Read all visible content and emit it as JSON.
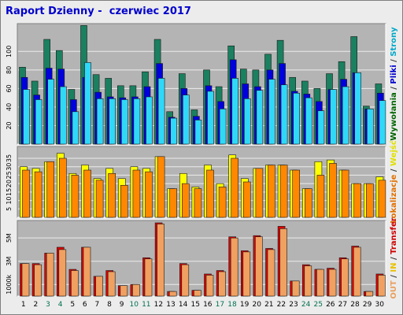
{
  "title": "Raport Dzienny -  czerwiec 2017",
  "side_labels": {
    "top": [
      {
        "text": "Wywołania",
        "color": "#006400"
      },
      {
        "text": " / ",
        "color": "#333333"
      },
      {
        "text": "Pliki",
        "color": "#0000cc"
      },
      {
        "text": " / ",
        "color": "#333333"
      },
      {
        "text": "Strony",
        "color": "#00a8c8"
      }
    ],
    "middle": [
      {
        "text": "Lokalizacje",
        "color": "#e07000"
      },
      {
        "text": " / ",
        "color": "#333333"
      },
      {
        "text": "Wejść",
        "color": "#e0e000"
      }
    ],
    "bottom": [
      {
        "text": "OUT",
        "color": "#e8a060"
      },
      {
        "text": " / ",
        "color": "#333333"
      },
      {
        "text": "IN",
        "color": "#e8c000"
      },
      {
        "text": " / ",
        "color": "#333333"
      },
      {
        "text": "Transfer",
        "color": "#cc0000"
      }
    ]
  },
  "colors": {
    "hits": "#1a8060",
    "files": "#0000dd",
    "pages": "#30d8f8",
    "visits": "#ffff00",
    "sites": "#ff8800",
    "kbytes": "#dd0000",
    "kbytes_out": "#f0a060",
    "plot_bg": "#b4b4b4",
    "grid": "#ececec",
    "day_normal": "#000000",
    "day_weekend": "#007050"
  },
  "chart_data": [
    {
      "type": "bar",
      "name_key": "hits_files_pages",
      "ylim": [
        0,
        130
      ],
      "yticks": [
        "20",
        "40",
        "60",
        "80",
        "100"
      ],
      "ytick_values": [
        20,
        40,
        60,
        80,
        100
      ],
      "series": [
        {
          "values": [
            83,
            68,
            113,
            101,
            59,
            128,
            75,
            71,
            63,
            63,
            78,
            113,
            35,
            76,
            37,
            80,
            62,
            106,
            81,
            80,
            97,
            112,
            72,
            68,
            60,
            76,
            89,
            116,
            41,
            65
          ]
        },
        {
          "values": [
            72,
            53,
            82,
            81,
            48,
            72,
            56,
            51,
            50,
            51,
            62,
            87,
            29,
            60,
            30,
            63,
            46,
            91,
            65,
            62,
            80,
            87,
            57,
            54,
            46,
            59,
            70,
            77,
            38,
            55
          ]
        },
        {
          "values": [
            59,
            48,
            70,
            62,
            35,
            88,
            49,
            49,
            48,
            49,
            51,
            71,
            28,
            53,
            26,
            57,
            38,
            71,
            49,
            58,
            70,
            64,
            55,
            50,
            36,
            59,
            62,
            77,
            38,
            47
          ]
        }
      ]
    },
    {
      "type": "bar",
      "name_key": "visits_sites",
      "ylim": [
        0,
        42
      ],
      "yticks": [
        "5",
        "10",
        "15",
        "20",
        "25",
        "30",
        "35"
      ],
      "ytick_values": [
        5,
        10,
        15,
        20,
        25,
        30,
        35
      ],
      "series": [
        {
          "values": [
            30,
            29,
            33,
            38,
            26,
            31,
            23,
            29,
            23,
            30,
            29,
            36,
            17,
            26,
            18,
            31,
            20,
            37,
            23,
            29,
            31,
            31,
            28,
            17,
            33,
            34,
            28,
            20,
            20,
            24
          ]
        },
        {
          "values": [
            28,
            27,
            33,
            35,
            25,
            28,
            22,
            26,
            19,
            28,
            27,
            36,
            17,
            20,
            17,
            28,
            18,
            35,
            21,
            29,
            31,
            31,
            28,
            17,
            25,
            32,
            28,
            20,
            20,
            22
          ]
        }
      ]
    },
    {
      "type": "bar",
      "name_key": "kbytes",
      "ylim": [
        0,
        6500
      ],
      "yticks": [
        "1000k",
        "3M",
        "5M"
      ],
      "ytick_values": [
        1000,
        3000,
        5000
      ],
      "series": [
        {
          "values": [
            2800,
            2800,
            3700,
            4200,
            2300,
            4200,
            1700,
            2200,
            900,
            1000,
            3300,
            6300,
            400,
            2800,
            500,
            1900,
            2200,
            5100,
            3900,
            5200,
            4100,
            6000,
            1300,
            2700,
            2300,
            2400,
            3300,
            4300,
            400,
            1900
          ]
        },
        {
          "values": [
            2800,
            2700,
            3700,
            4000,
            2200,
            4200,
            1700,
            2100,
            900,
            1000,
            3200,
            6200,
            400,
            2700,
            500,
            1800,
            2100,
            5000,
            3800,
            5100,
            4000,
            5800,
            1300,
            2600,
            2300,
            2300,
            3200,
            4200,
            400,
            1800
          ]
        }
      ]
    }
  ],
  "days": [
    "1",
    "2",
    "3",
    "4",
    "5",
    "6",
    "7",
    "8",
    "9",
    "10",
    "11",
    "12",
    "13",
    "14",
    "15",
    "16",
    "17",
    "18",
    "19",
    "20",
    "21",
    "22",
    "23",
    "24",
    "25",
    "26",
    "27",
    "28",
    "29",
    "30"
  ],
  "weekend_days": [
    3,
    4,
    10,
    11,
    17,
    18,
    24,
    25
  ]
}
